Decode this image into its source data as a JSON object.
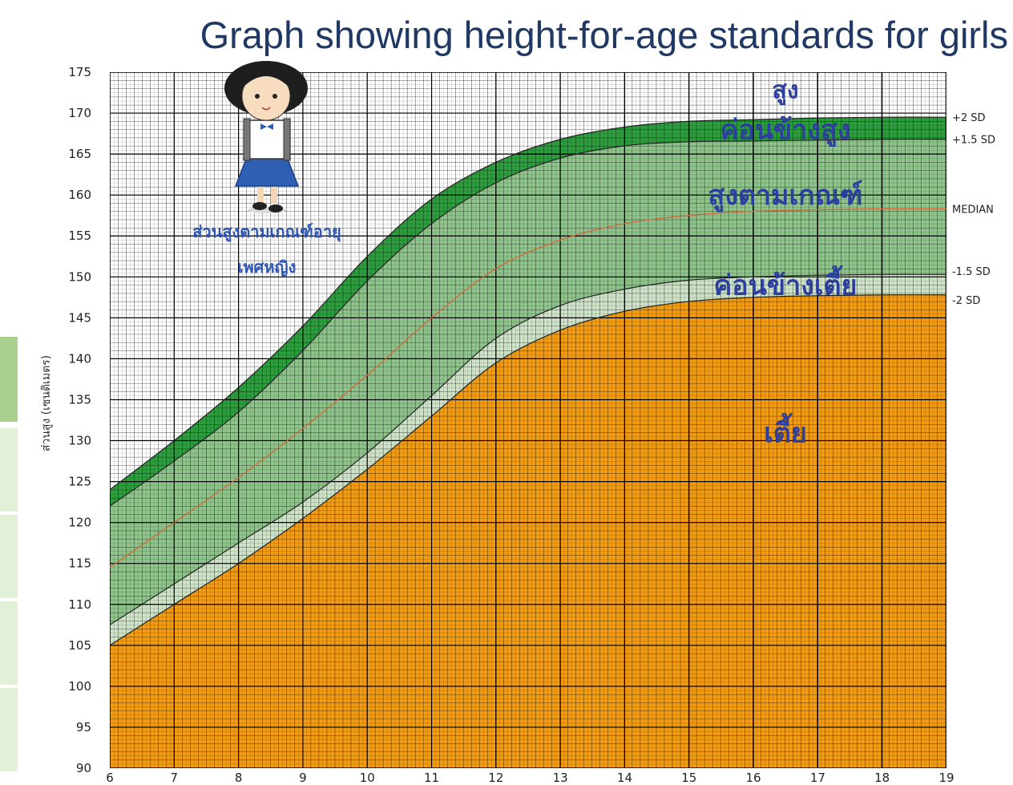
{
  "title": "Graph showing height-for-age standards for girls",
  "chart_data": {
    "type": "area",
    "title": "Graph showing height-for-age standards for girls",
    "chart_label": [
      "ส่วนสูงตามเกณฑ์อายุ",
      "เพศหญิง"
    ],
    "xlabel": "",
    "ylabel": "ส่วนสูง (เซนติเมตร)",
    "xlim": [
      6,
      19
    ],
    "ylim": [
      90,
      175
    ],
    "x_ticks": [
      6,
      7,
      8,
      9,
      10,
      11,
      12,
      13,
      14,
      15,
      16,
      17,
      18,
      19
    ],
    "y_ticks": [
      90,
      95,
      100,
      105,
      110,
      115,
      120,
      125,
      130,
      135,
      140,
      145,
      150,
      155,
      160,
      165,
      170,
      175
    ],
    "grid": true,
    "x": [
      6,
      7,
      8,
      9,
      10,
      11,
      12,
      13,
      14,
      15,
      16,
      17,
      18,
      19
    ],
    "series": [
      {
        "name": "+2 SD",
        "values": [
          124.0,
          130.0,
          136.5,
          144.0,
          152.5,
          159.5,
          164.0,
          166.8,
          168.3,
          169.0,
          169.2,
          169.4,
          169.5,
          169.5
        ]
      },
      {
        "name": "+1.5 SD",
        "values": [
          122.0,
          127.5,
          133.5,
          141.0,
          149.5,
          156.5,
          161.5,
          164.5,
          166.0,
          166.5,
          166.6,
          166.7,
          166.8,
          166.8
        ]
      },
      {
        "name": "MEDIAN",
        "values": [
          114.5,
          120.0,
          125.5,
          131.5,
          138.0,
          145.0,
          151.0,
          154.5,
          156.5,
          157.5,
          158.0,
          158.2,
          158.3,
          158.3
        ]
      },
      {
        "name": "-1.5 SD",
        "values": [
          107.5,
          112.5,
          117.5,
          122.5,
          128.5,
          135.5,
          142.5,
          146.5,
          148.5,
          149.6,
          150.0,
          150.2,
          150.3,
          150.3
        ]
      },
      {
        "name": "-2 SD",
        "values": [
          105.0,
          110.0,
          115.0,
          120.5,
          126.5,
          133.0,
          139.5,
          143.5,
          145.8,
          147.0,
          147.5,
          147.7,
          147.8,
          147.8
        ]
      }
    ],
    "zones": [
      {
        "label": "สูง",
        "value": 173
      },
      {
        "label": "ค่อนข้างสูง",
        "value": 168
      },
      {
        "label": "สูงตามเกณฑ์",
        "value": 160
      },
      {
        "label": "ค่อนข้างเตี้ย",
        "value": 149
      },
      {
        "label": "เตี้ย",
        "value": 131
      }
    ],
    "colors": {
      "above": "#ffffff",
      "plus2_band": "#2d9e3e",
      "normal_band": "#8fc48c",
      "minus_band": "#cfe3c8",
      "short": "#f39c12",
      "median_line": "#d2693a",
      "sd_line": "#222222",
      "grid_minor": "#000000"
    }
  }
}
